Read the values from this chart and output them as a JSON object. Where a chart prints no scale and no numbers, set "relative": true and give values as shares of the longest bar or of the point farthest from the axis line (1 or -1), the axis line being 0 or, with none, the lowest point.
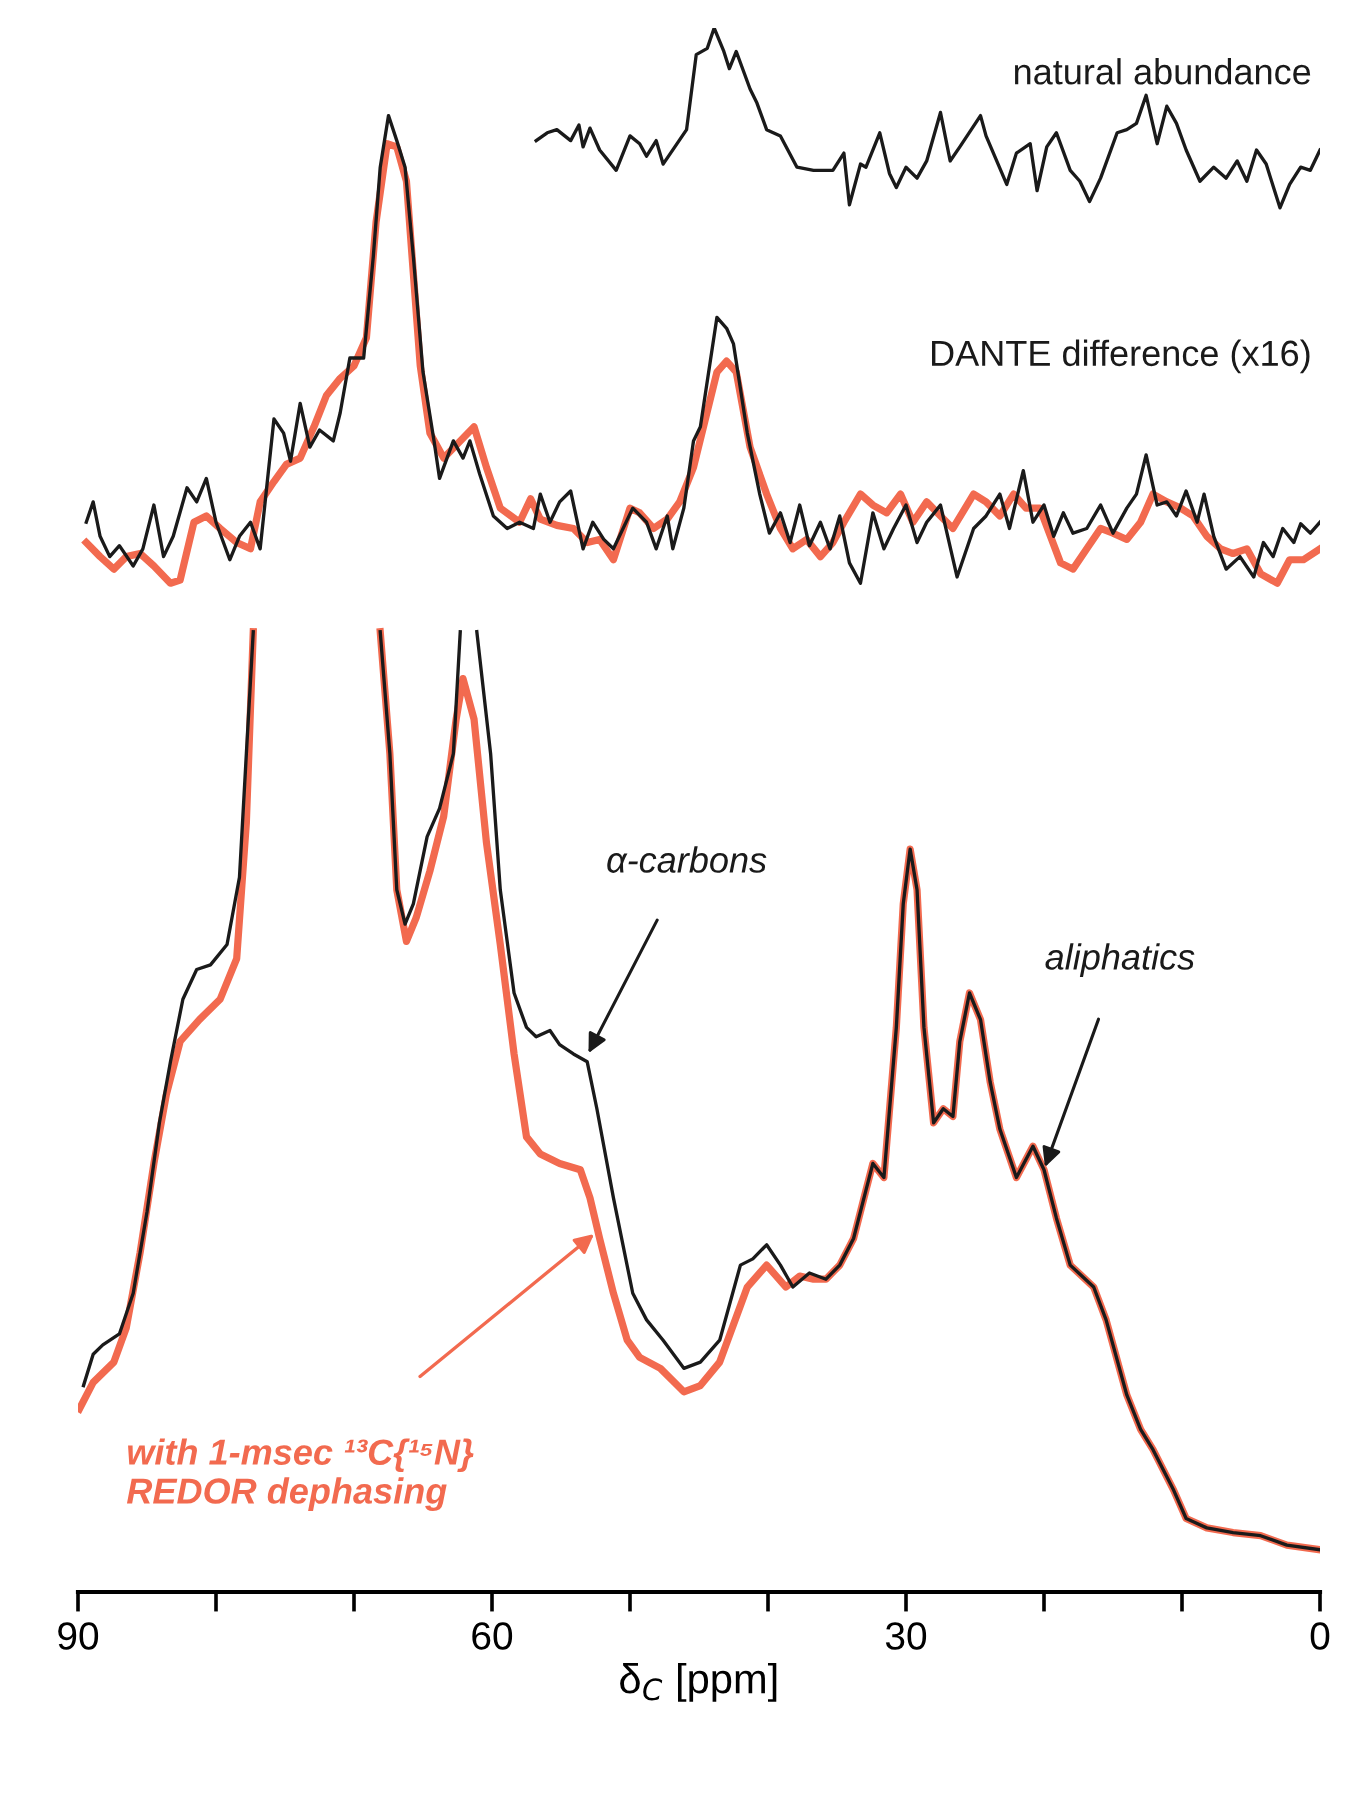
{
  "chart_data": {
    "type": "line",
    "relative": true,
    "xlabel": "δ$_{C}$ [ppm]",
    "xlim": [
      90,
      0
    ],
    "xticks": [
      90,
      {
        "value": 80,
        "label": null
      },
      {
        "value": 70,
        "label": null
      },
      60,
      {
        "value": 50,
        "label": null
      },
      {
        "value": 40,
        "label": null
      },
      30,
      {
        "value": 20,
        "label": null
      },
      {
        "value": 10,
        "label": null
      },
      0
    ],
    "grid": false,
    "legend": false,
    "series": [
      {
        "name": "natural abundance",
        "color": "#1a1a1a",
        "x": [
          56.8,
          56.0,
          55.3,
          54.3,
          53.7,
          53.4,
          52.9,
          52.2,
          51.0,
          50.0,
          49.3,
          48.8,
          48.1,
          47.6,
          45.9,
          45.2,
          44.4,
          43.9,
          43.2,
          42.8,
          42.3,
          41.3,
          40.8,
          40.1,
          39.1,
          37.9,
          36.7,
          35.3,
          34.5,
          34.1,
          33.3,
          32.9,
          31.9,
          31.2,
          30.7,
          30.0,
          29.2,
          28.5,
          27.5,
          26.8,
          26.1,
          24.6,
          24.2,
          22.7,
          22.0,
          21.0,
          20.5,
          19.8,
          19.1,
          18.1,
          17.4,
          16.7,
          15.9,
          14.7,
          14.0,
          13.3,
          12.6,
          11.8,
          11.1,
          10.4,
          9.7,
          8.7,
          7.7,
          6.8,
          6.0,
          5.3,
          4.6,
          3.9,
          2.9,
          2.2,
          1.4,
          0.7,
          0.0
        ],
        "values": [
          0.928,
          0.933,
          0.935,
          0.928,
          0.938,
          0.924,
          0.936,
          0.922,
          0.909,
          0.931,
          0.926,
          0.918,
          0.928,
          0.913,
          0.935,
          0.983,
          0.987,
          1.0,
          0.985,
          0.974,
          0.985,
          0.961,
          0.952,
          0.935,
          0.931,
          0.911,
          0.909,
          0.909,
          0.92,
          0.887,
          0.913,
          0.911,
          0.933,
          0.907,
          0.898,
          0.911,
          0.904,
          0.915,
          0.946,
          0.915,
          0.924,
          0.944,
          0.931,
          0.9,
          0.92,
          0.926,
          0.896,
          0.924,
          0.933,
          0.909,
          0.902,
          0.889,
          0.904,
          0.933,
          0.935,
          0.939,
          0.957,
          0.926,
          0.95,
          0.939,
          0.922,
          0.902,
          0.911,
          0.904,
          0.915,
          0.902,
          0.922,
          0.913,
          0.885,
          0.9,
          0.911,
          0.909,
          0.922
        ]
      },
      {
        "color": "#f26a4f",
        "x": [
          89.4,
          88.4,
          87.4,
          86.5,
          85.5,
          84.5,
          83.3,
          82.6,
          81.6,
          80.7,
          79.7,
          78.5,
          77.5,
          76.8,
          75.8,
          74.9,
          73.9,
          72.9,
          72.0,
          71.0,
          70.0,
          69.1,
          68.4,
          67.6,
          66.9,
          66.2,
          65.2,
          64.5,
          63.5,
          62.3,
          61.3,
          60.4,
          59.4,
          58.0,
          57.2,
          56.5,
          55.3,
          54.1,
          53.1,
          52.2,
          51.2,
          50.0,
          49.3,
          48.3,
          47.3,
          46.4,
          45.4,
          43.7,
          43.0,
          42.3,
          41.3,
          40.1,
          39.1,
          38.2,
          37.2,
          36.2,
          35.3,
          34.5,
          33.3,
          32.4,
          31.4,
          30.4,
          29.5,
          28.5,
          27.5,
          26.6,
          25.1,
          24.2,
          23.2,
          22.2,
          21.3,
          20.3,
          18.8,
          17.9,
          16.9,
          15.9,
          15.0,
          14.0,
          13.0,
          12.1,
          11.1,
          10.1,
          9.2,
          8.2,
          7.2,
          6.3,
          5.3,
          4.3,
          3.1,
          2.2,
          1.2,
          0.0
        ],
        "values": [
          0.671,
          0.662,
          0.654,
          0.662,
          0.664,
          0.656,
          0.645,
          0.647,
          0.684,
          0.688,
          0.68,
          0.671,
          0.667,
          0.697,
          0.71,
          0.721,
          0.725,
          0.745,
          0.765,
          0.776,
          0.784,
          0.802,
          0.876,
          0.926,
          0.924,
          0.902,
          0.784,
          0.741,
          0.725,
          0.736,
          0.745,
          0.719,
          0.693,
          0.684,
          0.699,
          0.686,
          0.682,
          0.68,
          0.671,
          0.673,
          0.66,
          0.693,
          0.69,
          0.68,
          0.686,
          0.697,
          0.719,
          0.78,
          0.787,
          0.78,
          0.732,
          0.702,
          0.68,
          0.667,
          0.673,
          0.662,
          0.671,
          0.684,
          0.702,
          0.695,
          0.69,
          0.702,
          0.684,
          0.697,
          0.688,
          0.68,
          0.702,
          0.697,
          0.688,
          0.702,
          0.693,
          0.693,
          0.658,
          0.654,
          0.667,
          0.68,
          0.677,
          0.673,
          0.684,
          0.702,
          0.697,
          0.693,
          0.688,
          0.675,
          0.667,
          0.664,
          0.667,
          0.651,
          0.645,
          0.66,
          0.66,
          0.667
        ]
      },
      {
        "name": "DANTE difference (x16)",
        "color": "#1a1a1a",
        "x": [
          89.4,
          88.9,
          88.4,
          87.7,
          87.0,
          86.0,
          85.3,
          84.5,
          83.8,
          83.1,
          82.1,
          81.4,
          80.7,
          80.0,
          79.0,
          78.3,
          77.5,
          76.8,
          75.8,
          75.1,
          74.6,
          73.9,
          73.2,
          72.5,
          71.5,
          71.0,
          70.3,
          69.3,
          68.6,
          68.1,
          67.5,
          66.9,
          66.3,
          65.7,
          65.0,
          64.2,
          63.8,
          62.8,
          62.1,
          61.6,
          60.9,
          59.9,
          58.9,
          58.0,
          57.0,
          56.5,
          55.8,
          55.1,
          54.3,
          53.4,
          52.7,
          51.9,
          51.2,
          49.8,
          48.8,
          48.1,
          47.3,
          46.9,
          46.1,
          45.4,
          44.9,
          43.7,
          43.0,
          42.5,
          41.5,
          40.6,
          39.9,
          39.1,
          38.4,
          37.7,
          37.0,
          36.2,
          35.5,
          34.8,
          34.1,
          33.3,
          32.4,
          31.6,
          30.9,
          30.0,
          29.2,
          28.5,
          27.5,
          26.3,
          25.1,
          24.2,
          23.2,
          22.5,
          21.5,
          20.8,
          20.0,
          19.3,
          18.6,
          17.9,
          16.9,
          15.9,
          15.0,
          14.0,
          13.3,
          12.6,
          11.8,
          11.1,
          10.4,
          9.7,
          8.9,
          8.4,
          7.7,
          6.8,
          5.8,
          4.8,
          4.1,
          3.4,
          2.7,
          1.9,
          1.4,
          0.7,
          0.0
        ],
        "values": [
          0.684,
          0.697,
          0.675,
          0.662,
          0.669,
          0.656,
          0.667,
          0.695,
          0.662,
          0.675,
          0.706,
          0.697,
          0.712,
          0.684,
          0.66,
          0.675,
          0.684,
          0.667,
          0.75,
          0.741,
          0.723,
          0.76,
          0.732,
          0.743,
          0.736,
          0.754,
          0.789,
          0.789,
          0.854,
          0.911,
          0.944,
          0.928,
          0.911,
          0.854,
          0.78,
          0.736,
          0.712,
          0.736,
          0.725,
          0.736,
          0.715,
          0.688,
          0.68,
          0.684,
          0.68,
          0.702,
          0.684,
          0.697,
          0.704,
          0.667,
          0.684,
          0.673,
          0.667,
          0.693,
          0.684,
          0.667,
          0.688,
          0.667,
          0.693,
          0.736,
          0.745,
          0.815,
          0.808,
          0.798,
          0.741,
          0.702,
          0.677,
          0.69,
          0.671,
          0.695,
          0.669,
          0.684,
          0.667,
          0.688,
          0.658,
          0.645,
          0.69,
          0.667,
          0.68,
          0.695,
          0.671,
          0.684,
          0.695,
          0.649,
          0.68,
          0.688,
          0.702,
          0.68,
          0.717,
          0.684,
          0.695,
          0.675,
          0.69,
          0.677,
          0.68,
          0.695,
          0.677,
          0.693,
          0.702,
          0.727,
          0.695,
          0.697,
          0.688,
          0.704,
          0.684,
          0.702,
          0.675,
          0.654,
          0.662,
          0.649,
          0.671,
          0.662,
          0.68,
          0.671,
          0.683,
          0.677,
          0.684
        ]
      },
      {
        "name": "with 1-msec ¹³C{¹⁵N}\nREDOR dephasing",
        "color": "#f26a4f",
        "x": [
          89.9,
          88.9,
          87.4,
          86.5,
          85.5,
          84.5,
          83.6,
          82.6,
          81.2,
          79.7,
          78.5,
          77.8,
          77.3,
          72.0,
          68.1,
          67.4,
          66.9,
          66.2,
          65.5,
          64.5,
          63.5,
          62.6,
          62.1,
          61.3,
          60.4,
          59.4,
          58.4,
          57.5,
          56.5,
          55.1,
          53.6,
          52.9,
          52.2,
          51.2,
          50.2,
          49.3,
          47.8,
          46.1,
          44.9,
          43.5,
          41.5,
          40.1,
          38.7,
          37.7,
          36.7,
          35.8,
          34.8,
          33.8,
          32.9,
          32.4,
          31.6,
          30.7,
          30.2,
          29.7,
          29.2,
          28.7,
          28.0,
          27.3,
          26.6,
          26.1,
          25.4,
          24.6,
          23.9,
          23.2,
          22.0,
          20.8,
          20.0,
          19.1,
          18.1,
          16.4,
          15.5,
          14.0,
          13.0,
          12.1,
          10.6,
          9.7,
          8.2,
          6.3,
          4.3,
          2.4,
          0.0
        ],
        "values": [
          0.117,
          0.134,
          0.147,
          0.169,
          0.217,
          0.274,
          0.318,
          0.352,
          0.366,
          0.379,
          0.405,
          0.492,
          0.614,
          null,
          0.614,
          0.536,
          0.449,
          0.416,
          0.431,
          0.461,
          0.496,
          0.558,
          0.584,
          0.558,
          0.479,
          0.414,
          0.344,
          0.291,
          0.28,
          0.274,
          0.27,
          0.252,
          0.226,
          0.191,
          0.161,
          0.15,
          0.143,
          0.128,
          0.132,
          0.147,
          0.195,
          0.209,
          0.195,
          0.202,
          0.2,
          0.2,
          0.209,
          0.226,
          0.257,
          0.274,
          0.265,
          0.361,
          0.44,
          0.475,
          0.449,
          0.361,
          0.3,
          0.309,
          0.304,
          0.352,
          0.383,
          0.366,
          0.326,
          0.296,
          0.265,
          0.285,
          0.27,
          0.239,
          0.209,
          0.195,
          0.174,
          0.126,
          0.104,
          0.091,
          0.065,
          0.047,
          0.041,
          0.038,
          0.036,
          0.03,
          0.027
        ]
      },
      {
        "color": "#1a1a1a",
        "x": [
          89.6,
          88.9,
          88.2,
          87.0,
          86.0,
          85.0,
          84.1,
          83.3,
          82.4,
          81.4,
          80.4,
          79.2,
          78.3,
          77.8,
          77.3,
          72.0,
          68.1,
          67.4,
          66.9,
          66.3,
          65.7,
          64.7,
          63.8,
          62.8,
          62.3,
          61.7,
          61.1,
          60.1,
          59.4,
          58.4,
          57.5,
          56.8,
          55.8,
          55.1,
          54.1,
          53.1,
          52.4,
          51.2,
          49.8,
          48.8,
          47.6,
          46.1,
          44.9,
          43.5,
          42.0,
          41.1,
          40.1,
          39.1,
          38.2,
          37.0,
          35.8,
          34.8,
          33.8,
          32.9,
          32.4,
          31.6,
          30.7,
          30.2,
          29.7,
          29.2,
          28.7,
          28.0,
          27.3,
          26.6,
          26.1,
          25.4,
          24.6,
          23.9,
          23.2,
          22.0,
          20.8,
          20.0,
          19.1,
          18.1,
          16.4,
          15.5,
          14.0,
          13.0,
          12.1,
          10.6,
          9.7,
          8.2,
          6.3,
          4.3,
          2.4,
          0.0
        ],
        "values": [
          0.132,
          0.152,
          0.158,
          0.165,
          0.191,
          0.243,
          0.3,
          0.339,
          0.379,
          0.398,
          0.401,
          0.414,
          0.457,
          0.536,
          0.614,
          null,
          0.614,
          0.536,
          0.449,
          0.427,
          0.44,
          0.483,
          0.501,
          0.536,
          0.614,
          null,
          0.614,
          0.536,
          0.449,
          0.383,
          0.361,
          0.355,
          0.359,
          0.35,
          0.344,
          0.339,
          0.309,
          0.252,
          0.191,
          0.174,
          0.161,
          0.143,
          0.147,
          0.161,
          0.209,
          0.213,
          0.222,
          0.209,
          0.195,
          0.204,
          0.2,
          0.209,
          0.226,
          0.257,
          0.274,
          0.265,
          0.361,
          0.44,
          0.475,
          0.449,
          0.361,
          0.3,
          0.309,
          0.304,
          0.352,
          0.383,
          0.366,
          0.326,
          0.296,
          0.265,
          0.285,
          0.27,
          0.239,
          0.209,
          0.195,
          0.174,
          0.126,
          0.104,
          0.091,
          0.065,
          0.047,
          0.041,
          0.038,
          0.036,
          0.03,
          0.027
        ]
      }
    ],
    "annotations": [
      "α-carbons",
      {
        "text": "aliphatics",
        "x": 20.0,
        "y": 0.27
      }
    ]
  }
}
